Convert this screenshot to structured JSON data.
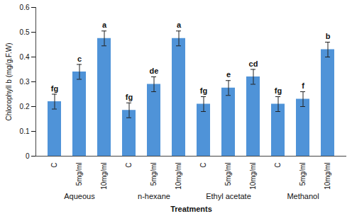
{
  "chart_data": {
    "type": "bar",
    "y_label": "Chlorophyll b (mg/g.F.W)",
    "x_label": "Treatments",
    "categories": [
      "C",
      "5mg/ml",
      "10mg/ml",
      "C",
      "5mg/ml",
      "10mg/ml",
      "C",
      "5mg/ml",
      "10mg/ml",
      "C",
      "5mg/ml",
      "10mg/ml"
    ],
    "groups": [
      "Aqueous",
      "n-hexane",
      "Ethyl acetate",
      "Methanol"
    ],
    "values": [
      0.22,
      0.34,
      0.475,
      0.185,
      0.29,
      0.475,
      0.21,
      0.275,
      0.32,
      0.21,
      0.23,
      0.43
    ],
    "errors": [
      0.03,
      0.03,
      0.03,
      0.03,
      0.03,
      0.03,
      0.03,
      0.03,
      0.03,
      0.03,
      0.03,
      0.03
    ],
    "annotations": [
      "fg",
      "c",
      "a",
      "fg",
      "de",
      "a",
      "fg",
      "e",
      "cd",
      "fg",
      "f",
      "b"
    ],
    "color": "#4f93d8",
    "ylim": [
      0,
      0.6
    ],
    "yticks": [
      0,
      0.1,
      0.2,
      0.3,
      0.4,
      0.5,
      0.6
    ],
    "grid": false
  }
}
